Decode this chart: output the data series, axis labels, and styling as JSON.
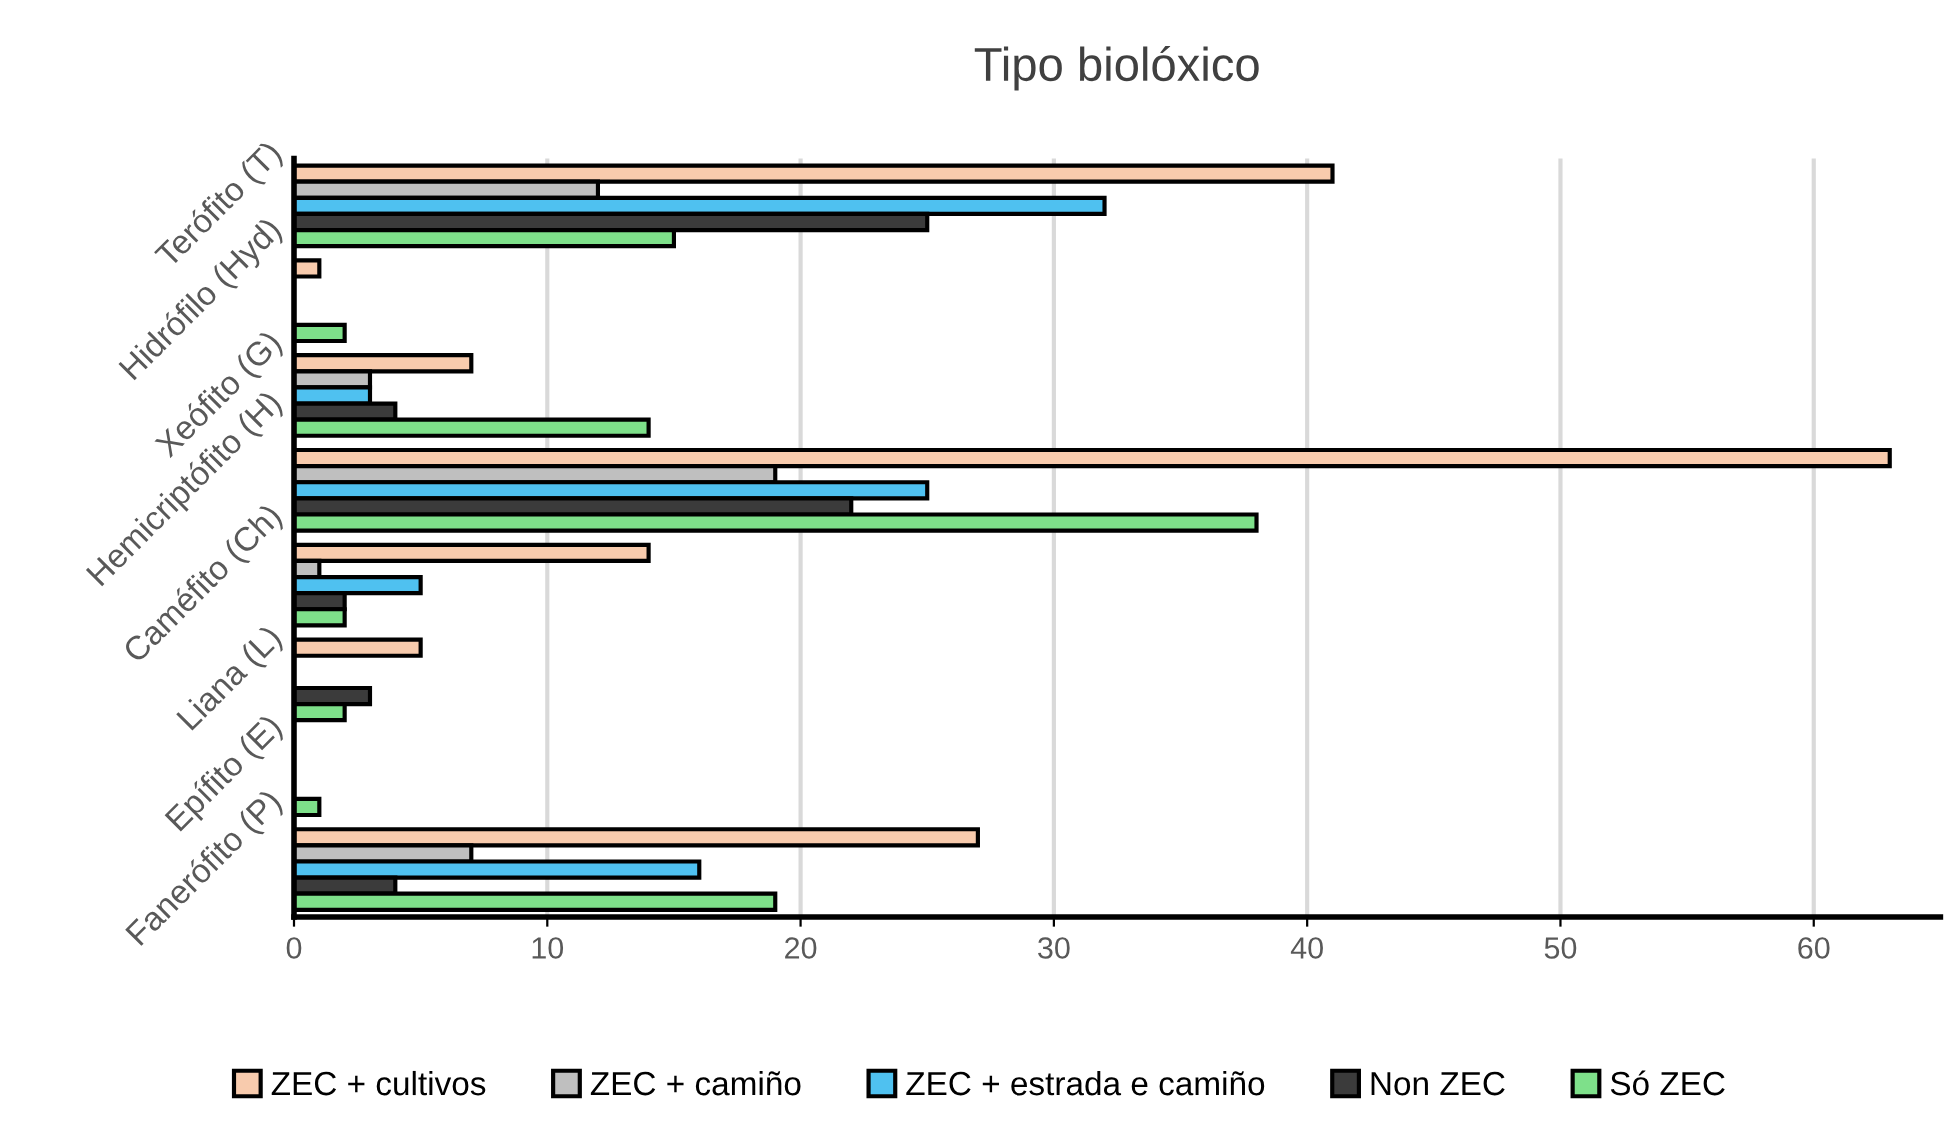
{
  "chart_data": {
    "type": "bar",
    "orientation": "horizontal",
    "title": "Tipo biolóxico",
    "categories": [
      "Terófito (T)",
      "Hidrófilo (Hyd)",
      "Xeófito (G)",
      "Hemicriptófito (H)",
      "Caméfito (Ch)",
      "Liana (L)",
      "Epífito (E)",
      "Fanerófito (P)"
    ],
    "series": [
      {
        "name": "ZEC + cultivos",
        "color": "#f8cbad",
        "values": [
          41,
          1,
          7,
          63,
          14,
          5,
          0,
          27
        ]
      },
      {
        "name": "ZEC + camiño",
        "color": "#bfbfbf",
        "values": [
          12,
          0,
          3,
          19,
          1,
          0,
          0,
          7
        ]
      },
      {
        "name": "ZEC + estrada e camiño",
        "color": "#4fc1f0",
        "values": [
          32,
          0,
          3,
          25,
          5,
          0,
          0,
          16
        ]
      },
      {
        "name": "Non ZEC",
        "color": "#3b3b3b",
        "values": [
          25,
          0,
          4,
          22,
          2,
          3,
          0,
          4
        ]
      },
      {
        "name": "Só ZEC",
        "color": "#7ee08a",
        "values": [
          15,
          2,
          14,
          38,
          2,
          2,
          1,
          19
        ]
      }
    ],
    "xlim": [
      0,
      65
    ],
    "xticks": [
      0,
      10,
      20,
      30,
      40,
      50,
      60
    ],
    "grid": "x",
    "legend": "bottom"
  }
}
